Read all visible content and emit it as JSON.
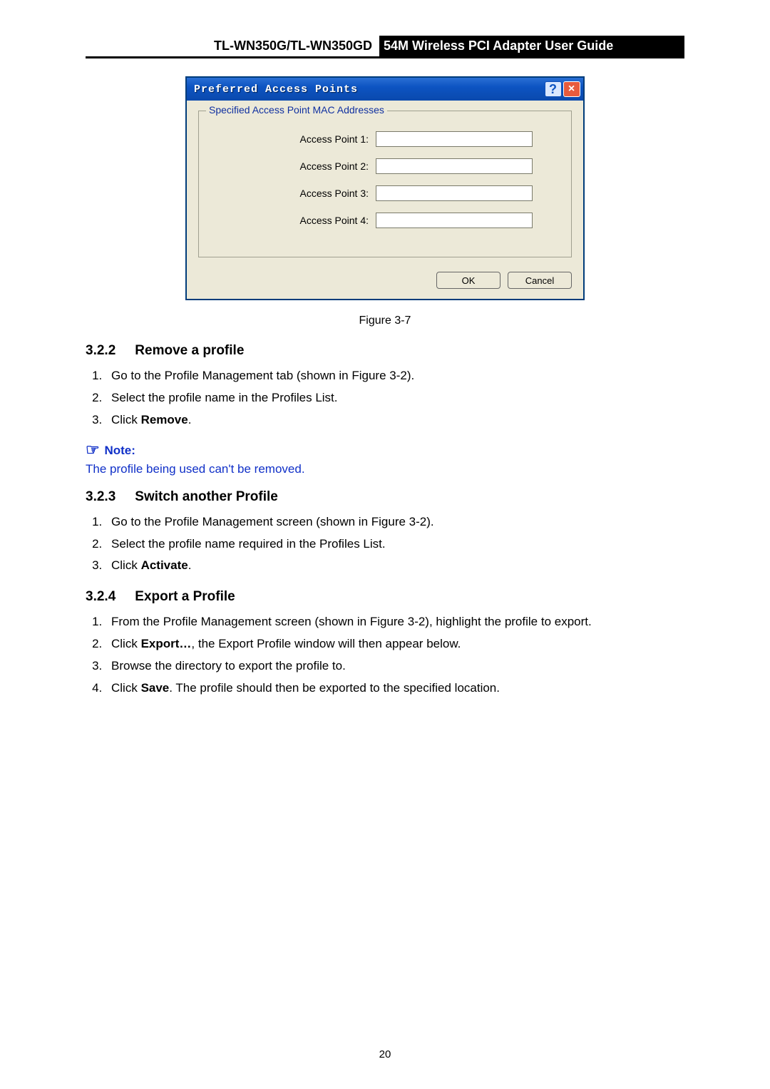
{
  "header": {
    "left": "TL-WN350G/TL-WN350GD",
    "right": "54M  Wireless  PCI  Adapter  User  Guide"
  },
  "dialog": {
    "title": "Preferred Access Points",
    "help_symbol": "?",
    "close_symbol": "×",
    "group_legend": "Specified Access Point MAC Addresses",
    "rows": [
      {
        "label": "Access Point 1:",
        "value": ""
      },
      {
        "label": "Access Point 2:",
        "value": ""
      },
      {
        "label": "Access Point 3:",
        "value": ""
      },
      {
        "label": "Access Point 4:",
        "value": ""
      }
    ],
    "ok": "OK",
    "cancel": "Cancel"
  },
  "figure_caption": "Figure 3-7",
  "sections": {
    "s322": {
      "num": "3.2.2",
      "title": "Remove a profile"
    },
    "s323": {
      "num": "3.2.3",
      "title": "Switch another Profile"
    },
    "s324": {
      "num": "3.2.4",
      "title": "Export a Profile"
    }
  },
  "steps_322": {
    "i1": "Go to the Profile Management tab (shown in Figure 3-2).",
    "i2": "Select the profile name in the Profiles List.",
    "i3_pre": "Click ",
    "i3_bold": "Remove",
    "i3_post": "."
  },
  "note": {
    "icon": "☞",
    "label": "Note:",
    "body": "The profile being used can't be removed."
  },
  "steps_323": {
    "i1": "Go to the Profile Management screen (shown in Figure 3-2).",
    "i2": "Select the profile name required in the Profiles List.",
    "i3_pre": "Click ",
    "i3_bold": "Activate",
    "i3_post": "."
  },
  "steps_324": {
    "i1": "From the Profile Management screen (shown in Figure 3-2), highlight the profile to export.",
    "i2_pre": "Click ",
    "i2_bold": "Export…",
    "i2_post": ", the Export Profile window will then appear below.",
    "i3": "Browse the directory to export the profile to.",
    "i4_pre": "Click ",
    "i4_bold": "Save",
    "i4_post": ". The profile should then be exported to the specified location."
  },
  "page_number": "20",
  "colors": {
    "note_color": "#1030c8",
    "dialog_bg": "#ece9d8",
    "titlebar_grad_top": "#2a6fd4",
    "titlebar_grad_bot": "#0a49ad"
  }
}
